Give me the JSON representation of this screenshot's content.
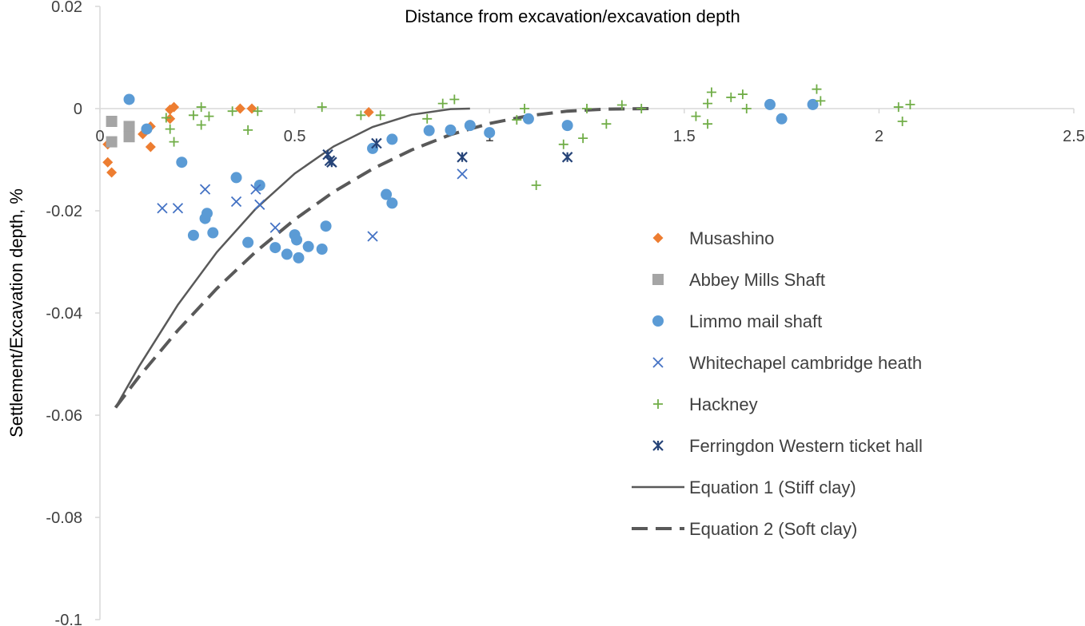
{
  "chart_data": {
    "type": "scatter",
    "xlabel": "Distance from excavation/excavation depth",
    "ylabel": "Settlement/Excavation depth, %",
    "xlim": [
      0,
      2.5
    ],
    "ylim": [
      -0.1,
      0.02
    ],
    "xticks": [
      "0",
      "0.5",
      "1",
      "1.5",
      "2",
      "2.5"
    ],
    "yticks": [
      "0.02",
      "0",
      "-0.02",
      "-0.04",
      "-0.06",
      "-0.08",
      "-0.1"
    ],
    "grid": false,
    "legend_position": "right",
    "series": [
      {
        "name": "Musashino",
        "marker": "diamond",
        "color": "#ED7D31",
        "points": [
          [
            0.02,
            -0.007
          ],
          [
            0.02,
            -0.0105
          ],
          [
            0.03,
            -0.0125
          ],
          [
            0.11,
            -0.005
          ],
          [
            0.13,
            -0.0035
          ],
          [
            0.13,
            -0.0075
          ],
          [
            0.18,
            -0.002
          ],
          [
            0.18,
            -0.0002
          ],
          [
            0.19,
            0.0003
          ],
          [
            0.36,
            0.0
          ],
          [
            0.39,
            0.0
          ],
          [
            0.69,
            -0.0007
          ]
        ]
      },
      {
        "name": "Abbey Mills Shaft",
        "marker": "square",
        "color": "#A5A5A5",
        "points": [
          [
            0.03,
            -0.0025
          ],
          [
            0.03,
            -0.0065
          ],
          [
            0.075,
            -0.0035
          ],
          [
            0.075,
            -0.0055
          ]
        ]
      },
      {
        "name": "Limmo mail shaft",
        "marker": "circle",
        "color": "#5B9BD5",
        "points": [
          [
            0.075,
            0.0018
          ],
          [
            0.12,
            -0.004
          ],
          [
            0.21,
            -0.0105
          ],
          [
            0.24,
            -0.0248
          ],
          [
            0.27,
            -0.0215
          ],
          [
            0.275,
            -0.0205
          ],
          [
            0.29,
            -0.0243
          ],
          [
            0.35,
            -0.0135
          ],
          [
            0.38,
            -0.0262
          ],
          [
            0.41,
            -0.015
          ],
          [
            0.45,
            -0.0272
          ],
          [
            0.48,
            -0.0285
          ],
          [
            0.5,
            -0.0247
          ],
          [
            0.505,
            -0.0257
          ],
          [
            0.51,
            -0.0292
          ],
          [
            0.535,
            -0.027
          ],
          [
            0.57,
            -0.0275
          ],
          [
            0.58,
            -0.023
          ],
          [
            0.7,
            -0.0078
          ],
          [
            0.735,
            -0.0168
          ],
          [
            0.75,
            -0.0185
          ],
          [
            0.75,
            -0.006
          ],
          [
            0.845,
            -0.0043
          ],
          [
            0.9,
            -0.0042
          ],
          [
            0.95,
            -0.0033
          ],
          [
            1.0,
            -0.0047
          ],
          [
            1.1,
            -0.002
          ],
          [
            1.2,
            -0.0033
          ],
          [
            1.72,
            0.0008
          ],
          [
            1.75,
            -0.002
          ],
          [
            1.83,
            0.0008
          ]
        ]
      },
      {
        "name": "Whitechapel cambridge heath",
        "marker": "x",
        "color": "#4472C4",
        "points": [
          [
            0.16,
            -0.0195
          ],
          [
            0.2,
            -0.0195
          ],
          [
            0.27,
            -0.0158
          ],
          [
            0.35,
            -0.0182
          ],
          [
            0.4,
            -0.0158
          ],
          [
            0.41,
            -0.0188
          ],
          [
            0.45,
            -0.0233
          ],
          [
            0.7,
            -0.025
          ],
          [
            0.93,
            -0.0128
          ]
        ]
      },
      {
        "name": "Hackney",
        "marker": "plus",
        "color": "#70AD47",
        "points": [
          [
            0.17,
            -0.0018
          ],
          [
            0.18,
            -0.004
          ],
          [
            0.19,
            -0.0065
          ],
          [
            0.24,
            -0.0013
          ],
          [
            0.26,
            0.0003
          ],
          [
            0.26,
            -0.0032
          ],
          [
            0.28,
            -0.0015
          ],
          [
            0.34,
            -0.0005
          ],
          [
            0.38,
            -0.0042
          ],
          [
            0.405,
            -0.0005
          ],
          [
            0.57,
            0.0003
          ],
          [
            0.67,
            -0.0013
          ],
          [
            0.72,
            -0.0013
          ],
          [
            0.84,
            -0.002
          ],
          [
            0.88,
            0.001
          ],
          [
            0.91,
            0.0018
          ],
          [
            1.07,
            -0.0022
          ],
          [
            1.09,
            0.0
          ],
          [
            1.12,
            -0.015
          ],
          [
            1.19,
            -0.007
          ],
          [
            1.24,
            -0.0058
          ],
          [
            1.25,
            0.0
          ],
          [
            1.3,
            -0.003
          ],
          [
            1.34,
            0.0007
          ],
          [
            1.39,
            0.0
          ],
          [
            1.53,
            -0.0015
          ],
          [
            1.56,
            -0.003
          ],
          [
            1.56,
            0.001
          ],
          [
            1.57,
            0.0032
          ],
          [
            1.62,
            0.0022
          ],
          [
            1.65,
            0.0028
          ],
          [
            1.66,
            0.0
          ],
          [
            1.84,
            0.0038
          ],
          [
            1.85,
            0.0015
          ],
          [
            2.05,
            0.0003
          ],
          [
            2.06,
            -0.0025
          ],
          [
            2.08,
            0.0008
          ]
        ]
      },
      {
        "name": "Ferringdon Western ticket hall",
        "marker": "star",
        "color": "#264478",
        "points": [
          [
            0.585,
            -0.009
          ],
          [
            0.59,
            -0.0102
          ],
          [
            0.595,
            -0.0105
          ],
          [
            0.71,
            -0.0068
          ],
          [
            0.93,
            -0.0095
          ],
          [
            1.2,
            -0.0095
          ]
        ]
      },
      {
        "name": "Equation 1 (Stiff clay)",
        "line": "solid",
        "color": "#595959",
        "x": [
          0.04,
          0.1,
          0.2,
          0.3,
          0.4,
          0.5,
          0.6,
          0.7,
          0.8,
          0.9,
          0.95
        ],
        "y": [
          -0.0585,
          -0.0505,
          -0.0384,
          -0.0281,
          -0.0196,
          -0.0127,
          -0.0074,
          -0.0036,
          -0.0012,
          -0.0001,
          0.0
        ]
      },
      {
        "name": "Equation 2 (Soft clay)",
        "line": "dashed",
        "color": "#595959",
        "x": [
          0.04,
          0.1,
          0.2,
          0.3,
          0.4,
          0.5,
          0.6,
          0.7,
          0.8,
          0.9,
          1.0,
          1.1,
          1.2,
          1.3,
          1.42
        ],
        "y": [
          -0.0585,
          -0.0525,
          -0.0434,
          -0.0352,
          -0.028,
          -0.0217,
          -0.0163,
          -0.0118,
          -0.0081,
          -0.0051,
          -0.0029,
          -0.0014,
          -0.0005,
          -0.0001,
          0.0
        ]
      }
    ]
  }
}
